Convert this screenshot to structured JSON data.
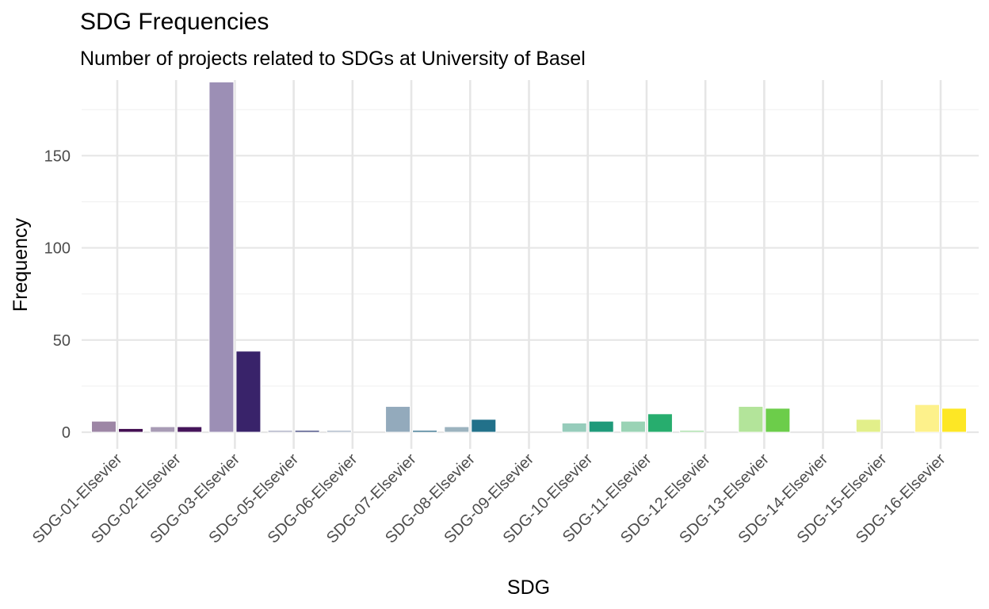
{
  "chart_data": {
    "type": "bar",
    "title": "SDG Frequencies",
    "subtitle": "Number of projects related to SDGs at University of Basel",
    "xlabel": "SDG",
    "ylabel": "Frequency",
    "ylim": [
      -9,
      191
    ],
    "yticks": [
      0,
      50,
      100,
      150
    ],
    "grid": true,
    "legend": "none",
    "categories": [
      "SDG-01-Elsevier",
      "SDG-02-Elsevier",
      "SDG-03-Elsevier",
      "SDG-05-Elsevier",
      "SDG-06-Elsevier",
      "SDG-07-Elsevier",
      "SDG-08-Elsevier",
      "SDG-09-Elsevier",
      "SDG-10-Elsevier",
      "SDG-11-Elsevier",
      "SDG-12-Elsevier",
      "SDG-13-Elsevier",
      "SDG-14-Elsevier",
      "SDG-15-Elsevier",
      "SDG-16-Elsevier"
    ],
    "series": [
      {
        "values": [
          6,
          3,
          190,
          1,
          1,
          14,
          3,
          0,
          5,
          6,
          1,
          14,
          0,
          7,
          15
        ],
        "colors": [
          "#9d86a5",
          "#a89bb5",
          "#9c8fb5",
          "#a5a8c0",
          "#a5b2c4",
          "#93aabc",
          "#9cb3bf",
          "#a7cac6",
          "#96ccbb",
          "#9ad3b5",
          "#a3dca3",
          "#b3e49a",
          "#cfea95",
          "#e2ef8a",
          "#fdf18b"
        ]
      },
      {
        "values": [
          2,
          3,
          44,
          1,
          0,
          1,
          7,
          0,
          6,
          10,
          0,
          13,
          0,
          0,
          13
        ],
        "colors": [
          "#430f52",
          "#45155a",
          "#39236a",
          "#383f79",
          "#3a5585",
          "#2d6b88",
          "#22718a",
          "#22908c",
          "#1f9a7a",
          "#27ad6e",
          "#38b75e",
          "#6ccd4a",
          "#98d83e",
          "#c9e12a",
          "#fde725"
        ]
      }
    ]
  }
}
